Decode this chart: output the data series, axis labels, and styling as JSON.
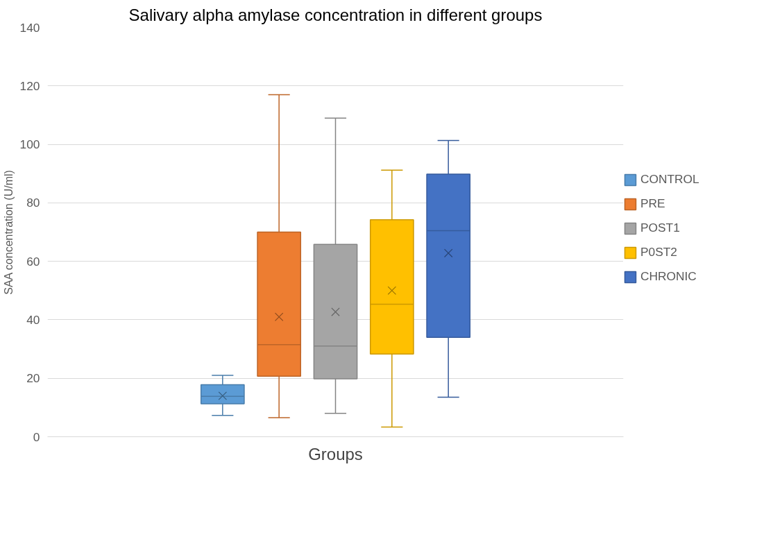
{
  "chart_data": {
    "type": "box",
    "title": "Salivary alpha amylase concentration in different groups",
    "xlabel": "Groups",
    "ylabel": "SAA concentration (U/ml)",
    "categories": [
      null
    ],
    "ylim": [
      0,
      140
    ],
    "yticks": [
      0,
      20,
      40,
      60,
      80,
      100,
      120,
      140
    ],
    "grid": "y",
    "legend": "right",
    "tick_labels": "y",
    "series": [
      {
        "name": "CONTROL",
        "color": "#5b9bd5",
        "boxes": [
          {
            "low": 7.3,
            "q1": 11.3,
            "median": 13.8,
            "q3": 17.8,
            "high": 21,
            "mean": 14
          }
        ]
      },
      {
        "name": "PRE",
        "color": "#ed7d31",
        "boxes": [
          {
            "low": 6.5,
            "q1": 20.7,
            "median": 31.5,
            "q3": 70,
            "high": 117,
            "mean": 41
          }
        ]
      },
      {
        "name": "POST1",
        "color": "#a5a5a5",
        "boxes": [
          {
            "low": 8,
            "q1": 19.8,
            "median": 31,
            "q3": 65.8,
            "high": 109,
            "mean": 42.7
          }
        ]
      },
      {
        "name": "P0ST2",
        "color": "#ffc000",
        "boxes": [
          {
            "low": 3.3,
            "q1": 28.3,
            "median": 45.3,
            "q3": 74.2,
            "high": 91.2,
            "mean": 50
          }
        ]
      },
      {
        "name": "CHRONIC",
        "color": "#4472c4",
        "boxes": [
          {
            "low": 13.5,
            "q1": 34,
            "median": 70.5,
            "q3": 89.8,
            "high": 101.3,
            "mean": 62.8
          }
        ]
      }
    ]
  }
}
